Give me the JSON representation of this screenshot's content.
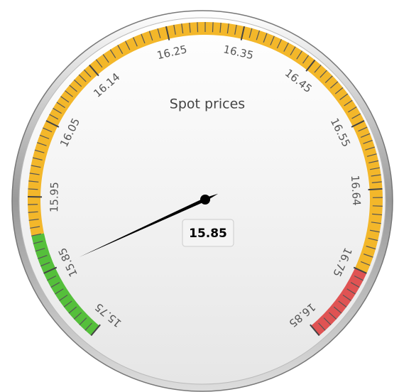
{
  "chart_data": {
    "type": "gauge",
    "title": "Spot prices",
    "values": [
      15.85
    ],
    "value_labels": [
      "15.85"
    ],
    "ylim": [
      15.75,
      16.85
    ],
    "yticks": [
      15.75,
      15.85,
      15.95,
      16.05,
      16.14,
      16.25,
      16.35,
      16.45,
      16.55,
      16.64,
      16.75,
      16.85
    ],
    "minor_ticks": 10,
    "bands": [
      {
        "from": 15.75,
        "to": 15.9,
        "color": "#55bf3b"
      },
      {
        "from": 15.9,
        "to": 16.75,
        "color": "#f3b72a"
      },
      {
        "from": 16.75,
        "to": 16.85,
        "color": "#df5353"
      }
    ]
  }
}
